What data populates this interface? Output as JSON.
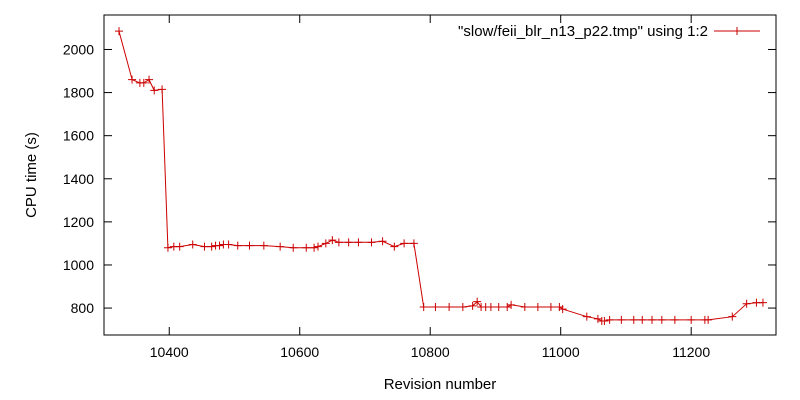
{
  "chart_data": {
    "type": "line",
    "title": "",
    "xlabel": "Revision number",
    "ylabel": "CPU time (s)",
    "xlim": [
      10300,
      11330
    ],
    "ylim": [
      675,
      2160
    ],
    "xticks": [
      10400,
      10600,
      10800,
      11000,
      11200
    ],
    "yticks": [
      800,
      1000,
      1200,
      1400,
      1600,
      1800,
      2000
    ],
    "grid": false,
    "legend_position": "top-right",
    "series": [
      {
        "name": "\"slow/feii_blr_n13_p22.tmp\" using 1:2",
        "color": "#cc0000",
        "marker": "plus",
        "x": [
          10323,
          10343,
          10355,
          10361,
          10369,
          10377,
          10389,
          10398,
          10407,
          10416,
          10436,
          10454,
          10465,
          10471,
          10477,
          10483,
          10491,
          10505,
          10523,
          10545,
          10570,
          10590,
          10610,
          10622,
          10628,
          10640,
          10650,
          10660,
          10675,
          10690,
          10710,
          10727,
          10745,
          10760,
          10775,
          10790,
          10808,
          10829,
          10850,
          10865,
          10872,
          10878,
          10885,
          10893,
          10905,
          10918,
          10924,
          10945,
          10965,
          10985,
          10998,
          11003,
          11040,
          11057,
          11063,
          11067,
          11075,
          11093,
          11112,
          11125,
          11140,
          11155,
          11175,
          11200,
          11221,
          11226,
          11263,
          11285,
          11300,
          11310
        ],
        "y": [
          2085,
          1860,
          1845,
          1845,
          1860,
          1810,
          1815,
          1080,
          1085,
          1085,
          1095,
          1085,
          1085,
          1090,
          1090,
          1095,
          1095,
          1090,
          1090,
          1090,
          1085,
          1080,
          1080,
          1080,
          1085,
          1100,
          1115,
          1105,
          1105,
          1105,
          1105,
          1110,
          1085,
          1100,
          1100,
          805,
          805,
          805,
          805,
          810,
          830,
          805,
          805,
          805,
          805,
          805,
          815,
          805,
          805,
          805,
          805,
          795,
          760,
          750,
          740,
          740,
          745,
          745,
          745,
          745,
          745,
          745,
          745,
          745,
          745,
          745,
          760,
          820,
          825,
          825
        ]
      }
    ]
  }
}
